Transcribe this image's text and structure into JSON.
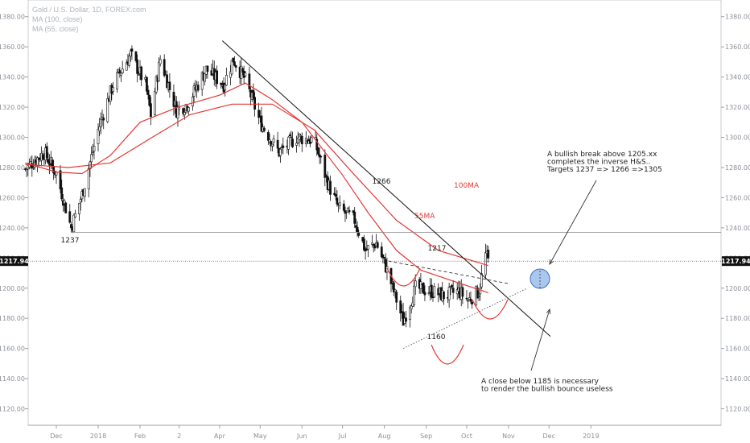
{
  "legend": {
    "symbol": "Gold / U.S. Dollar, 1D, FOREX.com",
    "ma100": "MA (100, close)",
    "ma55": "MA (55, close)"
  },
  "colors": {
    "candle_up": "#ffffff",
    "candle_down": "#111111",
    "ma": "#e53935",
    "trendline": "#111111",
    "horizontal": "#888888",
    "circle_fill": "#8fb4e8",
    "circle_stroke": "#3b6fc4",
    "price_tag": "#111111"
  },
  "current_price": {
    "value": 1217.94,
    "label": "1217.94"
  },
  "chart_data": {
    "type": "candlestick",
    "title": "Gold / U.S. Dollar, 1D, FOREX.com",
    "ylim": [
      1100,
      1390
    ],
    "y_ticks": [
      "1120.00",
      "1140.00",
      "1160.00",
      "1180.00",
      "1200.00",
      "1220.00",
      "1240.00",
      "1260.00",
      "1280.00",
      "1300.00",
      "1320.00",
      "1340.00",
      "1360.00",
      "1380.00"
    ],
    "y_tick_values": [
      1120,
      1140,
      1160,
      1180,
      1200,
      1220,
      1240,
      1260,
      1280,
      1300,
      1320,
      1340,
      1360,
      1380
    ],
    "x_ticks": [
      "Dec",
      "2018",
      "Feb",
      "2",
      "Apr",
      "May",
      "Jun",
      "Jul",
      "Aug",
      "Sep",
      "Oct",
      "Nov",
      "Dec",
      "2019"
    ],
    "x_tick_dates": [
      "2017-12-01",
      "2018-01-01",
      "2018-02-01",
      "2018-03-02",
      "2018-04-01",
      "2018-05-01",
      "2018-06-01",
      "2018-07-01",
      "2018-08-01",
      "2018-09-01",
      "2018-10-01",
      "2018-11-01",
      "2018-12-01",
      "2019-01-01"
    ],
    "close_path": [
      [
        "2017-11-08",
        1279
      ],
      [
        "2017-11-22",
        1290
      ],
      [
        "2017-12-01",
        1276
      ],
      [
        "2017-12-12",
        1240
      ],
      [
        "2017-12-20",
        1262
      ],
      [
        "2018-01-01",
        1305
      ],
      [
        "2018-01-12",
        1335
      ],
      [
        "2018-01-25",
        1355
      ],
      [
        "2018-02-05",
        1335
      ],
      [
        "2018-02-09",
        1315
      ],
      [
        "2018-02-16",
        1352
      ],
      [
        "2018-02-28",
        1318
      ],
      [
        "2018-03-08",
        1322
      ],
      [
        "2018-03-22",
        1345
      ],
      [
        "2018-04-04",
        1335
      ],
      [
        "2018-04-11",
        1352
      ],
      [
        "2018-04-20",
        1338
      ],
      [
        "2018-05-01",
        1310
      ],
      [
        "2018-05-15",
        1290
      ],
      [
        "2018-05-28",
        1300
      ],
      [
        "2018-06-10",
        1298
      ],
      [
        "2018-06-20",
        1270
      ],
      [
        "2018-06-28",
        1253
      ],
      [
        "2018-07-10",
        1245
      ],
      [
        "2018-07-18",
        1225
      ],
      [
        "2018-07-26",
        1230
      ],
      [
        "2018-08-03",
        1212
      ],
      [
        "2018-08-15",
        1178
      ],
      [
        "2018-08-24",
        1200
      ],
      [
        "2018-09-05",
        1198
      ],
      [
        "2018-09-14",
        1195
      ],
      [
        "2018-09-25",
        1198
      ],
      [
        "2018-10-02",
        1192
      ],
      [
        "2018-10-10",
        1198
      ],
      [
        "2018-10-15",
        1222
      ],
      [
        "2018-10-17",
        1217.94
      ]
    ],
    "ma55": [
      [
        "2017-11-08",
        1283
      ],
      [
        "2017-12-01",
        1277
      ],
      [
        "2017-12-20",
        1276
      ],
      [
        "2018-01-10",
        1288
      ],
      [
        "2018-02-01",
        1310
      ],
      [
        "2018-03-01",
        1320
      ],
      [
        "2018-04-01",
        1328
      ],
      [
        "2018-04-20",
        1336
      ],
      [
        "2018-05-01",
        1330
      ],
      [
        "2018-05-10",
        1325
      ],
      [
        "2018-06-01",
        1310
      ],
      [
        "2018-07-01",
        1275
      ],
      [
        "2018-07-20",
        1250
      ],
      [
        "2018-08-10",
        1225
      ],
      [
        "2018-08-28",
        1212
      ],
      [
        "2018-09-20",
        1205
      ],
      [
        "2018-10-17",
        1197
      ]
    ],
    "ma100": [
      [
        "2017-11-08",
        1282
      ],
      [
        "2017-12-10",
        1280
      ],
      [
        "2018-01-10",
        1283
      ],
      [
        "2018-02-10",
        1300
      ],
      [
        "2018-03-10",
        1315
      ],
      [
        "2018-04-10",
        1322
      ],
      [
        "2018-05-10",
        1322
      ],
      [
        "2018-06-10",
        1305
      ],
      [
        "2018-07-10",
        1275
      ],
      [
        "2018-08-10",
        1245
      ],
      [
        "2018-09-10",
        1225
      ],
      [
        "2018-10-17",
        1215
      ]
    ],
    "lines": {
      "downtrend": [
        [
          "2018-04-03",
          1364
        ],
        [
          "2018-12-02",
          1168
        ]
      ],
      "upper_neckline": [
        [
          "2018-08-04",
          1218
        ],
        [
          "2018-11-01",
          1203
        ]
      ],
      "lower_support": [
        [
          "2018-08-15",
          1160
        ],
        [
          "2018-11-15",
          1200
        ]
      ],
      "horizontal_1237": 1237
    },
    "annotations": {
      "low_1237": "1237",
      "level_1266": "1266",
      "level_1217": "1217",
      "level_1160": "1160",
      "ma100_label": "100MA",
      "ma55_label": "55MA",
      "bullish_note": [
        "A bullish break above 1205.xx",
        "completes the inverse H&S..",
        "Targets 1237 => 1266 =>1305"
      ],
      "bearish_note": [
        "A close below 1185 is necessary",
        "to render the bullish bounce useless"
      ]
    }
  }
}
